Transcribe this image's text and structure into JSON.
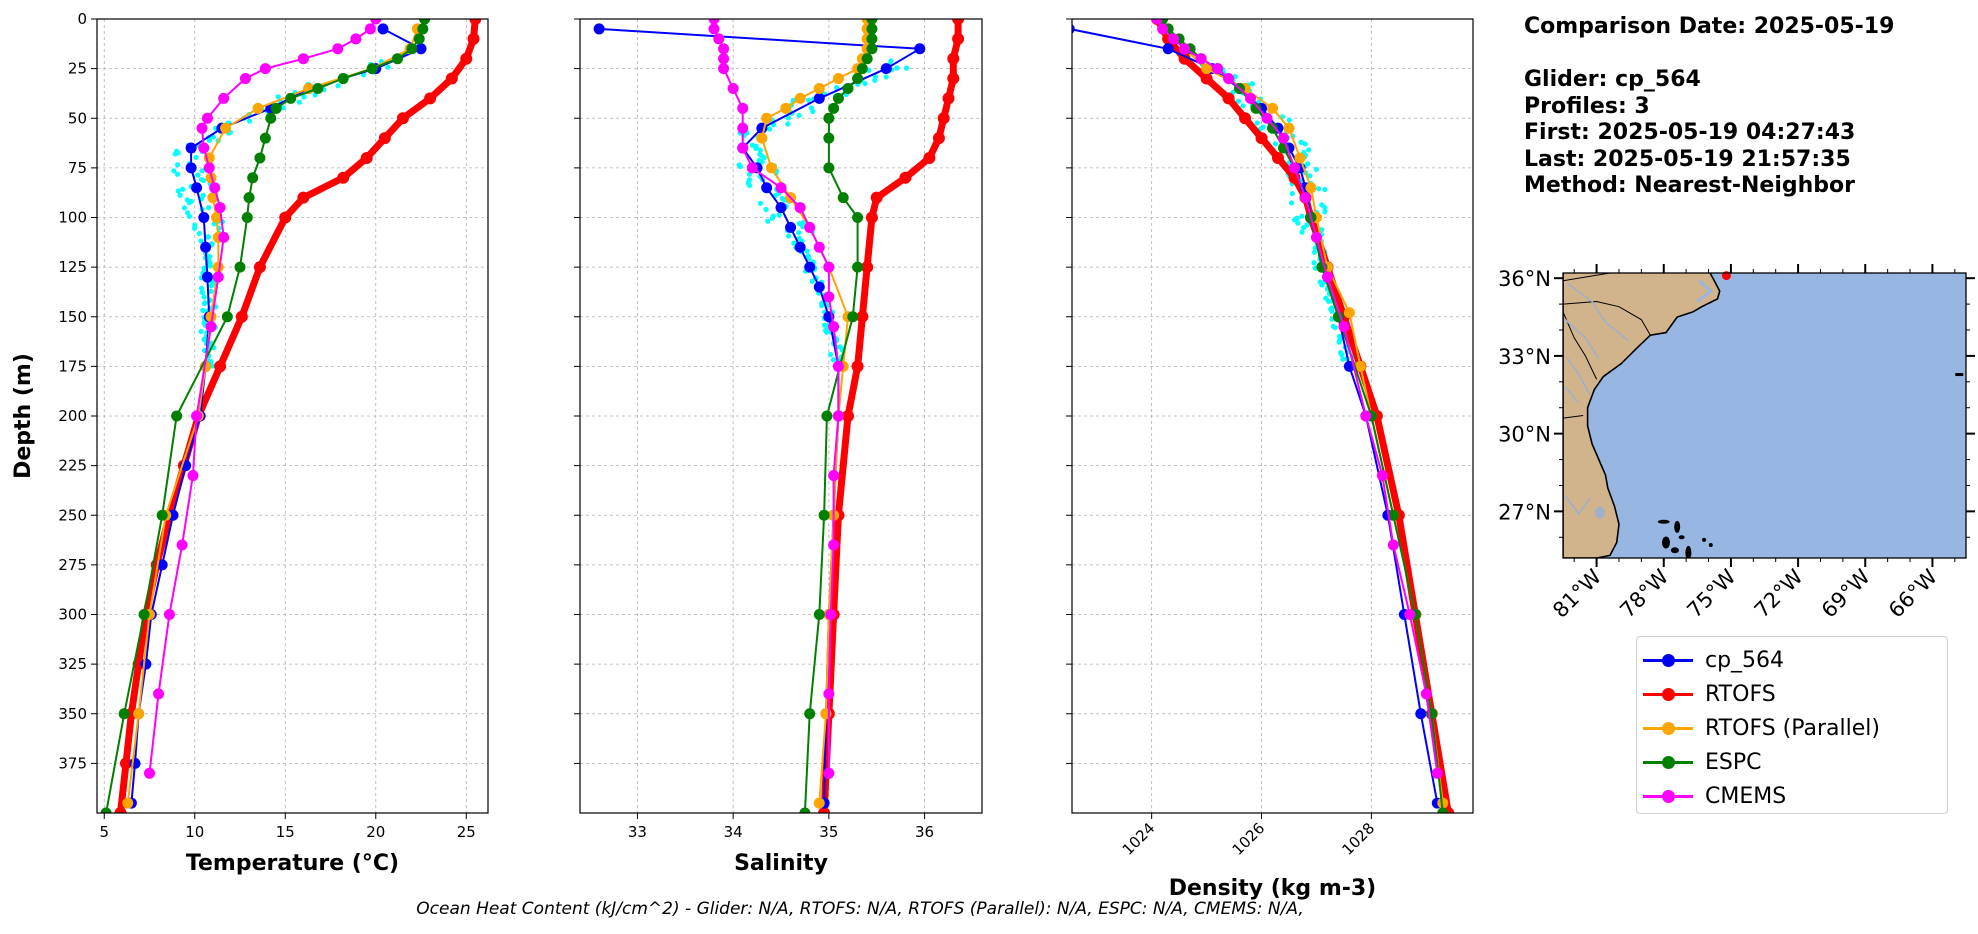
{
  "info": {
    "comparison_date": "Comparison Date: 2025-05-19",
    "glider": "Glider: cp_564",
    "profiles": "Profiles: 3",
    "first": "First: 2025-05-19 04:27:43",
    "last": "Last: 2025-05-19 21:57:35",
    "method": "Method: Nearest-Neighbor"
  },
  "footer": "Ocean Heat Content (kJ/cm^2) - Glider: N/A,  RTOFS: N/A,  RTOFS (Parallel): N/A,  ESPC: N/A,  CMEMS: N/A,",
  "colors": {
    "glider": "#0000ff",
    "rtofs": "#ff0000",
    "rtofs_parallel": "#ffa500",
    "espc": "#008000",
    "cmems": "#ff00ff",
    "raw_glider": "#00ffff",
    "land": "#d2b48c",
    "ocean": "#98b6e2"
  },
  "legend": [
    {
      "label": "cp_564",
      "color": "#0000ff"
    },
    {
      "label": "RTOFS",
      "color": "#ff0000"
    },
    {
      "label": "RTOFS (Parallel)",
      "color": "#ffa500"
    },
    {
      "label": "ESPC",
      "color": "#008000"
    },
    {
      "label": "CMEMS",
      "color": "#ff00ff"
    }
  ],
  "chart_data": [
    {
      "type": "line",
      "xlabel": "Temperature (°C)",
      "ylabel": "Depth (m)",
      "xlim": [
        4.6,
        26.2
      ],
      "ylim": [
        400,
        0
      ],
      "xticks": [
        5,
        10,
        15,
        20,
        25
      ],
      "yticks": [
        0,
        25,
        50,
        75,
        100,
        125,
        150,
        175,
        200,
        225,
        250,
        275,
        300,
        325,
        350,
        375
      ],
      "grid": true,
      "series": [
        {
          "name": "cp_564",
          "depth": [
            5,
            15,
            25,
            35,
            45,
            55,
            65,
            75,
            85,
            100,
            115,
            130,
            150,
            175,
            200,
            225,
            250,
            275,
            300,
            325,
            350,
            375,
            395
          ],
          "values": [
            20.4,
            22.5,
            20.0,
            16.3,
            14.2,
            11.5,
            9.8,
            9.8,
            10.1,
            10.5,
            10.6,
            10.7,
            10.8,
            10.6,
            10.3,
            9.5,
            8.8,
            8.2,
            7.6,
            7.3,
            6.9,
            6.7,
            6.5
          ]
        },
        {
          "name": "RTOFS",
          "depth": [
            0,
            10,
            20,
            30,
            40,
            50,
            60,
            70,
            80,
            90,
            100,
            125,
            150,
            175,
            200,
            225,
            250,
            275,
            300,
            325,
            350,
            375,
            400
          ],
          "values": [
            25.5,
            25.4,
            25.0,
            24.2,
            23.0,
            21.5,
            20.5,
            19.5,
            18.2,
            16.0,
            15.0,
            13.6,
            12.6,
            11.4,
            10.2,
            9.4,
            8.6,
            7.9,
            7.3,
            6.9,
            6.5,
            6.2,
            5.9
          ]
        },
        {
          "name": "RTOFS (Parallel)",
          "depth": [
            5,
            15,
            25,
            35,
            45,
            55,
            70,
            80,
            90,
            100,
            110,
            125,
            150,
            175,
            200,
            250,
            300,
            350,
            395
          ],
          "values": [
            22.3,
            21.9,
            19.8,
            16.3,
            13.5,
            11.7,
            10.8,
            10.9,
            11.0,
            11.2,
            11.3,
            11.3,
            10.9,
            10.6,
            10.2,
            8.4,
            7.5,
            6.9,
            6.3
          ]
        },
        {
          "name": "ESPC",
          "depth": [
            0,
            5,
            10,
            15,
            20,
            25,
            30,
            35,
            40,
            45,
            50,
            60,
            70,
            80,
            90,
            100,
            125,
            150,
            200,
            250,
            300,
            350,
            400
          ],
          "values": [
            22.7,
            22.6,
            22.4,
            22.0,
            21.2,
            19.8,
            18.2,
            16.8,
            15.3,
            14.5,
            14.2,
            13.9,
            13.6,
            13.2,
            13.0,
            12.9,
            12.5,
            11.8,
            9.0,
            8.2,
            7.2,
            6.1,
            5.1
          ]
        },
        {
          "name": "CMEMS",
          "depth": [
            0,
            5,
            10,
            15,
            20,
            25,
            30,
            40,
            50,
            55,
            65,
            75,
            85,
            95,
            110,
            130,
            155,
            200,
            230,
            265,
            300,
            340,
            380
          ],
          "values": [
            20.0,
            19.7,
            18.9,
            17.9,
            16.0,
            13.9,
            12.8,
            11.6,
            10.7,
            10.4,
            10.5,
            10.8,
            11.1,
            11.4,
            11.6,
            11.3,
            10.9,
            10.1,
            9.9,
            9.3,
            8.6,
            8.0,
            7.5
          ]
        }
      ]
    },
    {
      "type": "line",
      "xlabel": "Salinity",
      "ylabel": "",
      "xlim": [
        32.4,
        36.6
      ],
      "ylim": [
        400,
        0
      ],
      "xticks": [
        33,
        34,
        35,
        36
      ],
      "grid": true,
      "series": [
        {
          "name": "cp_564",
          "depth": [
            5,
            15,
            25,
            40,
            55,
            65,
            75,
            85,
            95,
            105,
            115,
            125,
            135,
            150,
            175,
            200,
            250,
            300,
            350,
            395
          ],
          "values": [
            32.6,
            35.95,
            35.6,
            34.9,
            34.3,
            34.1,
            34.25,
            34.35,
            34.5,
            34.6,
            34.7,
            34.8,
            34.9,
            35.0,
            35.1,
            35.1,
            35.05,
            35.0,
            34.97,
            34.95
          ]
        },
        {
          "name": "RTOFS",
          "depth": [
            0,
            10,
            20,
            30,
            40,
            50,
            60,
            70,
            80,
            90,
            100,
            125,
            150,
            175,
            200,
            250,
            300,
            350,
            400
          ],
          "values": [
            36.35,
            36.35,
            36.3,
            36.3,
            36.25,
            36.2,
            36.15,
            36.05,
            35.8,
            35.5,
            35.45,
            35.4,
            35.35,
            35.3,
            35.2,
            35.1,
            35.05,
            35.0,
            34.95
          ]
        },
        {
          "name": "RTOFS (Parallel)",
          "depth": [
            0,
            5,
            10,
            15,
            20,
            25,
            30,
            35,
            40,
            45,
            50,
            60,
            75,
            90,
            105,
            125,
            150,
            175,
            200,
            250,
            300,
            350,
            395
          ],
          "values": [
            35.4,
            35.4,
            35.4,
            35.4,
            35.35,
            35.3,
            35.1,
            34.9,
            34.7,
            34.55,
            34.35,
            34.3,
            34.4,
            34.6,
            34.8,
            35.0,
            35.2,
            35.15,
            35.1,
            35.05,
            35.0,
            34.97,
            34.9
          ]
        },
        {
          "name": "ESPC",
          "depth": [
            0,
            5,
            10,
            15,
            20,
            25,
            30,
            35,
            40,
            45,
            50,
            60,
            75,
            90,
            100,
            125,
            150,
            200,
            250,
            300,
            350,
            400
          ],
          "values": [
            35.45,
            35.45,
            35.45,
            35.45,
            35.4,
            35.35,
            35.3,
            35.2,
            35.1,
            35.05,
            35.0,
            35.0,
            35.0,
            35.15,
            35.3,
            35.3,
            35.25,
            34.98,
            34.95,
            34.9,
            34.8,
            34.75
          ]
        },
        {
          "name": "CMEMS",
          "depth": [
            0,
            5,
            10,
            15,
            20,
            25,
            35,
            45,
            55,
            65,
            75,
            85,
            95,
            105,
            115,
            125,
            140,
            155,
            175,
            200,
            230,
            265,
            300,
            340,
            380
          ],
          "values": [
            33.8,
            33.8,
            33.85,
            33.9,
            33.9,
            33.9,
            34.0,
            34.1,
            34.1,
            34.1,
            34.2,
            34.5,
            34.7,
            34.8,
            34.9,
            35.0,
            35.0,
            35.05,
            35.1,
            35.1,
            35.05,
            35.05,
            35.02,
            35.0,
            35.0
          ]
        }
      ]
    },
    {
      "type": "line",
      "xlabel": "Density (kg m-3)",
      "ylabel": "",
      "xlim": [
        1022.55,
        1029.85
      ],
      "ylim": [
        400,
        0
      ],
      "xticks": [
        1024,
        1026,
        1028
      ],
      "grid": true,
      "series": [
        {
          "name": "cp_564",
          "depth": [
            5,
            15,
            25,
            35,
            45,
            55,
            65,
            75,
            85,
            100,
            125,
            150,
            175,
            200,
            250,
            300,
            350,
            395
          ],
          "values": [
            1022.5,
            1024.3,
            1025.1,
            1025.6,
            1026.0,
            1026.3,
            1026.5,
            1026.7,
            1026.8,
            1026.9,
            1027.1,
            1027.4,
            1027.6,
            1027.9,
            1028.3,
            1028.6,
            1028.9,
            1029.2
          ]
        },
        {
          "name": "RTOFS",
          "depth": [
            0,
            10,
            20,
            30,
            40,
            50,
            60,
            70,
            80,
            90,
            100,
            125,
            150,
            175,
            200,
            250,
            300,
            350,
            400
          ],
          "values": [
            1024.1,
            1024.3,
            1024.6,
            1025.0,
            1025.4,
            1025.7,
            1026.0,
            1026.3,
            1026.6,
            1026.8,
            1026.9,
            1027.2,
            1027.5,
            1027.8,
            1028.1,
            1028.5,
            1028.8,
            1029.1,
            1029.4
          ]
        },
        {
          "name": "RTOFS (Parallel)",
          "depth": [
            5,
            15,
            25,
            35,
            45,
            55,
            70,
            85,
            100,
            125,
            148,
            175,
            200,
            250,
            300,
            350,
            395
          ],
          "values": [
            1024.3,
            1024.6,
            1025.0,
            1025.7,
            1026.2,
            1026.5,
            1026.7,
            1026.9,
            1027.0,
            1027.2,
            1027.6,
            1027.8,
            1028.0,
            1028.4,
            1028.8,
            1029.1,
            1029.3
          ]
        },
        {
          "name": "ESPC",
          "depth": [
            0,
            5,
            10,
            15,
            20,
            25,
            35,
            45,
            55,
            65,
            75,
            90,
            100,
            125,
            150,
            200,
            250,
            300,
            350,
            400
          ],
          "values": [
            1024.2,
            1024.3,
            1024.5,
            1024.7,
            1024.9,
            1025.2,
            1025.6,
            1025.9,
            1026.2,
            1026.4,
            1026.6,
            1026.8,
            1026.9,
            1027.1,
            1027.4,
            1028.0,
            1028.4,
            1028.8,
            1029.1,
            1029.3
          ]
        },
        {
          "name": "CMEMS",
          "depth": [
            0,
            5,
            10,
            15,
            20,
            25,
            30,
            40,
            50,
            60,
            75,
            90,
            110,
            130,
            155,
            200,
            230,
            265,
            300,
            340,
            380
          ],
          "values": [
            1024.1,
            1024.2,
            1024.4,
            1024.6,
            1024.9,
            1025.2,
            1025.4,
            1025.8,
            1026.1,
            1026.4,
            1026.6,
            1026.8,
            1027.0,
            1027.2,
            1027.5,
            1027.9,
            1028.2,
            1028.4,
            1028.7,
            1029.0,
            1029.2
          ]
        }
      ]
    },
    {
      "type": "map",
      "lon_range": [
        -82.5,
        -64.5
      ],
      "lat_range": [
        25.2,
        36.2
      ],
      "xticks": [
        "81°W",
        "78°W",
        "75°W",
        "72°W",
        "69°W",
        "66°W"
      ],
      "xtick_values": [
        -81,
        -78,
        -75,
        -72,
        -69,
        -66
      ],
      "yticks": [
        "36°N",
        "33°N",
        "30°N",
        "27°N"
      ],
      "ytick_values": [
        36,
        33,
        30,
        27
      ],
      "marker": {
        "lon": -75.2,
        "lat": 36.1,
        "color": "#ff0000"
      }
    }
  ]
}
